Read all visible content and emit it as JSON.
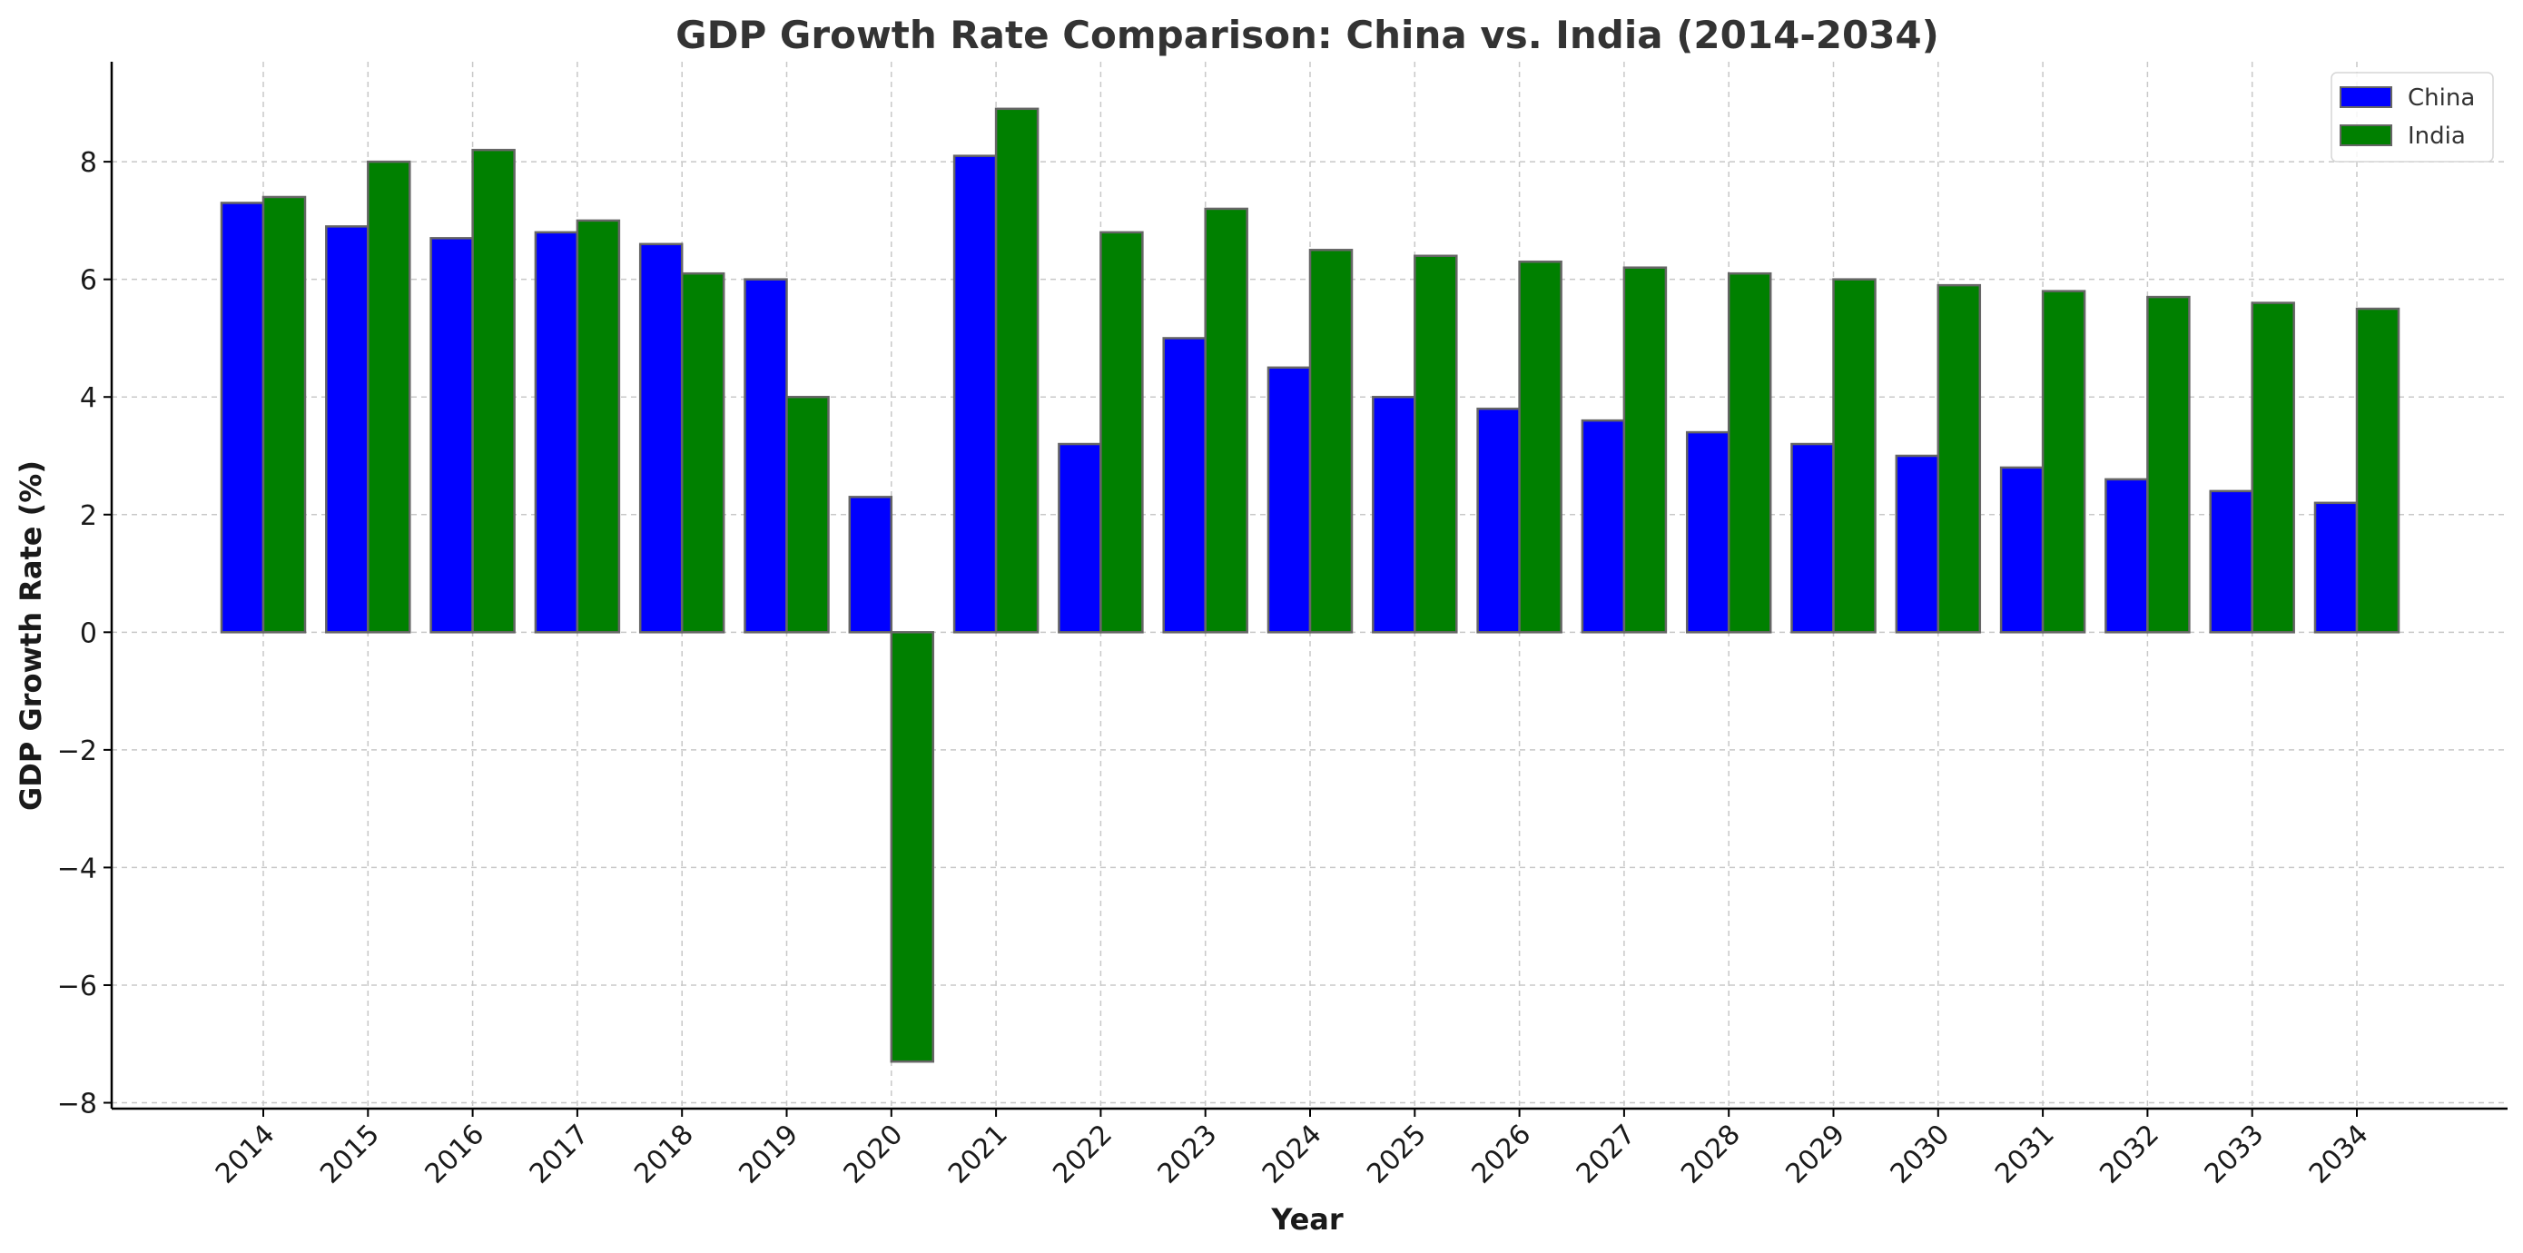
{
  "chart_data": {
    "type": "bar",
    "title": "GDP Growth Rate Comparison: China vs. India (2014-2034)",
    "xlabel": "Year",
    "ylabel": "GDP Growth Rate (%)",
    "categories": [
      "2014",
      "2015",
      "2016",
      "2017",
      "2018",
      "2019",
      "2020",
      "2021",
      "2022",
      "2023",
      "2024",
      "2025",
      "2026",
      "2027",
      "2028",
      "2029",
      "2030",
      "2031",
      "2032",
      "2033",
      "2034"
    ],
    "series": [
      {
        "name": "China",
        "color": "#0000ff",
        "values": [
          7.3,
          6.9,
          6.7,
          6.8,
          6.6,
          6.0,
          2.3,
          8.1,
          3.2,
          5.0,
          4.5,
          4.0,
          3.8,
          3.6,
          3.4,
          3.2,
          3.0,
          2.8,
          2.6,
          2.4,
          2.2
        ]
      },
      {
        "name": "India",
        "color": "#008000",
        "values": [
          7.4,
          8.0,
          8.2,
          7.0,
          6.1,
          4.0,
          -7.3,
          8.9,
          6.8,
          7.2,
          6.5,
          6.4,
          6.3,
          6.2,
          6.1,
          6.0,
          5.9,
          5.8,
          5.7,
          5.6,
          5.5
        ]
      }
    ],
    "ylim": [
      -8.1,
      9.7
    ],
    "yticks": [
      -8,
      -6,
      -4,
      -2,
      0,
      2,
      4,
      6,
      8
    ],
    "ytick_labels": [
      "−8",
      "−6",
      "−4",
      "−2",
      "0",
      "2",
      "4",
      "6",
      "8"
    ],
    "grid": true,
    "legend_position": "top-right",
    "bar_edge_color": "#666666",
    "grid_color": "#c8c8c8"
  }
}
